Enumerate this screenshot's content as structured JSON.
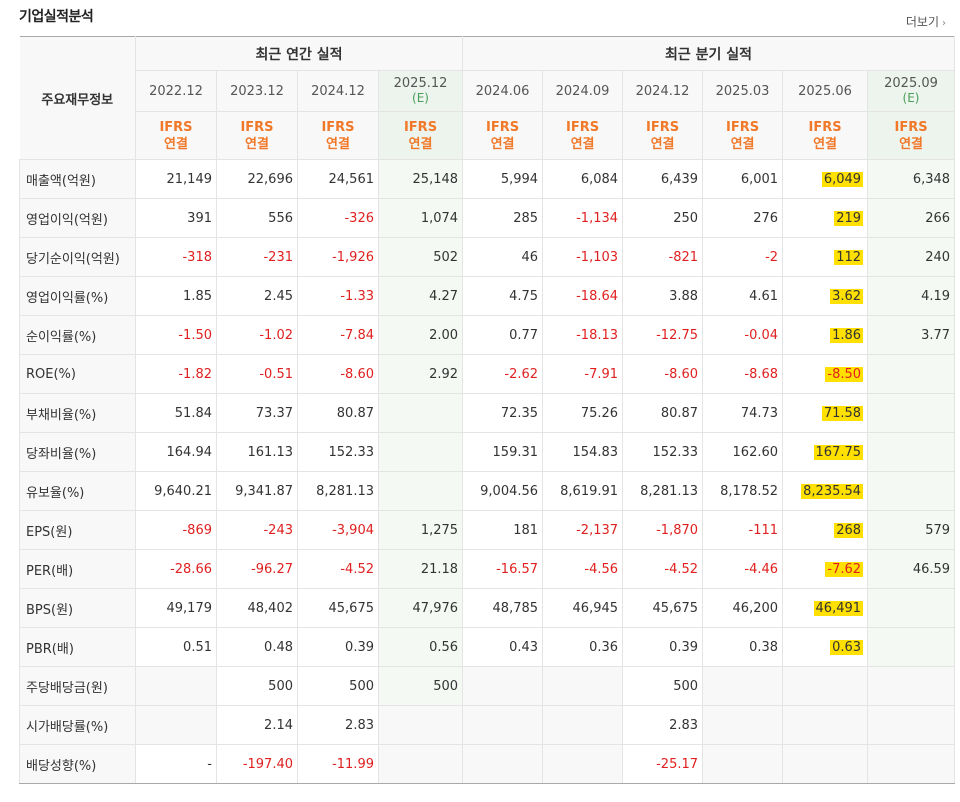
{
  "header": {
    "title": "기업실적분석",
    "more_label": "더보기"
  },
  "table": {
    "row_header": "주요재무정보",
    "groups": [
      {
        "label": "최근 연간 실적"
      },
      {
        "label": "최근 분기 실적"
      }
    ],
    "periods": [
      {
        "label": "2022.12",
        "est": ""
      },
      {
        "label": "2023.12",
        "est": ""
      },
      {
        "label": "2024.12",
        "est": ""
      },
      {
        "label": "2025.12",
        "est": "(E)"
      },
      {
        "label": "2024.06",
        "est": ""
      },
      {
        "label": "2024.09",
        "est": ""
      },
      {
        "label": "2024.12",
        "est": ""
      },
      {
        "label": "2025.03",
        "est": ""
      },
      {
        "label": "2025.06",
        "est": ""
      },
      {
        "label": "2025.09",
        "est": "(E)"
      }
    ],
    "ifrs_line1": "IFRS",
    "ifrs_line2": "연결",
    "rows": [
      {
        "label": "매출액(억원)",
        "values": [
          "21,149",
          "22,696",
          "24,561",
          "25,148",
          "5,994",
          "6,084",
          "6,439",
          "6,001",
          "6,049",
          "6,348"
        ]
      },
      {
        "label": "영업이익(억원)",
        "values": [
          "391",
          "556",
          "-326",
          "1,074",
          "285",
          "-1,134",
          "250",
          "276",
          "219",
          "266"
        ]
      },
      {
        "label": "당기순이익(억원)",
        "values": [
          "-318",
          "-231",
          "-1,926",
          "502",
          "46",
          "-1,103",
          "-821",
          "-2",
          "112",
          "240"
        ]
      },
      {
        "label": "영업이익률(%)",
        "values": [
          "1.85",
          "2.45",
          "-1.33",
          "4.27",
          "4.75",
          "-18.64",
          "3.88",
          "4.61",
          "3.62",
          "4.19"
        ]
      },
      {
        "label": "순이익률(%)",
        "values": [
          "-1.50",
          "-1.02",
          "-7.84",
          "2.00",
          "0.77",
          "-18.13",
          "-12.75",
          "-0.04",
          "1.86",
          "3.77"
        ]
      },
      {
        "label": "ROE(%)",
        "values": [
          "-1.82",
          "-0.51",
          "-8.60",
          "2.92",
          "-2.62",
          "-7.91",
          "-8.60",
          "-8.68",
          "-8.50",
          ""
        ]
      },
      {
        "label": "부채비율(%)",
        "values": [
          "51.84",
          "73.37",
          "80.87",
          "",
          "72.35",
          "75.26",
          "80.87",
          "74.73",
          "71.58",
          ""
        ]
      },
      {
        "label": "당좌비율(%)",
        "values": [
          "164.94",
          "161.13",
          "152.33",
          "",
          "159.31",
          "154.83",
          "152.33",
          "162.60",
          "167.75",
          ""
        ]
      },
      {
        "label": "유보율(%)",
        "values": [
          "9,640.21",
          "9,341.87",
          "8,281.13",
          "",
          "9,004.56",
          "8,619.91",
          "8,281.13",
          "8,178.52",
          "8,235.54",
          ""
        ]
      },
      {
        "label": "EPS(원)",
        "values": [
          "-869",
          "-243",
          "-3,904",
          "1,275",
          "181",
          "-2,137",
          "-1,870",
          "-111",
          "268",
          "579"
        ]
      },
      {
        "label": "PER(배)",
        "values": [
          "-28.66",
          "-96.27",
          "-4.52",
          "21.18",
          "-16.57",
          "-4.56",
          "-4.52",
          "-4.46",
          "-7.62",
          "46.59"
        ]
      },
      {
        "label": "BPS(원)",
        "values": [
          "49,179",
          "48,402",
          "45,675",
          "47,976",
          "48,785",
          "46,945",
          "45,675",
          "46,200",
          "46,491",
          ""
        ]
      },
      {
        "label": "PBR(배)",
        "values": [
          "0.51",
          "0.48",
          "0.39",
          "0.56",
          "0.43",
          "0.36",
          "0.39",
          "0.38",
          "0.63",
          ""
        ]
      },
      {
        "label": "주당배당금(원)",
        "values": [
          "",
          "500",
          "500",
          "500",
          "",
          "",
          "500",
          "",
          "",
          ""
        ]
      },
      {
        "label": "시가배당률(%)",
        "values": [
          "",
          "2.14",
          "2.83",
          "",
          "",
          "",
          "2.83",
          "",
          "",
          ""
        ]
      },
      {
        "label": "배당성향(%)",
        "values": [
          "-",
          "-197.40",
          "-11.99",
          "",
          "",
          "",
          "-25.17",
          "",
          "",
          ""
        ]
      }
    ],
    "highlight_color": "#ffe000"
  }
}
